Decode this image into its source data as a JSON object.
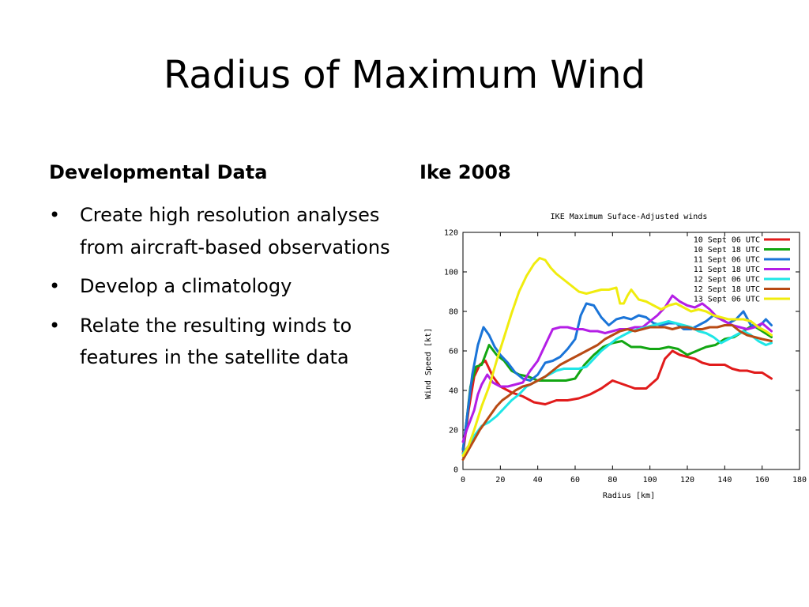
{
  "slide": {
    "title": "Radius of Maximum Wind",
    "left_heading": "Developmental Data",
    "right_heading": "Ike 2008",
    "bullets": [
      "Create high resolution analyses from aircraft-based observations",
      "Develop a climatology",
      "Relate the resulting winds to features in the satellite data"
    ]
  },
  "chart_data": {
    "type": "line",
    "title": "IKE Maximum Suface-Adjusted winds",
    "xlabel": "Radius [km]",
    "ylabel": "Wind Speed [kt]",
    "xlim": [
      0,
      180
    ],
    "ylim": [
      0,
      120
    ],
    "xticks": [
      0,
      20,
      40,
      60,
      80,
      100,
      120,
      140,
      160,
      180
    ],
    "yticks": [
      0,
      20,
      40,
      60,
      80,
      100,
      120
    ],
    "grid": false,
    "legend_position": "top-right",
    "series": [
      {
        "name": "10 Sept 06 UTC",
        "color": "#e11b1b",
        "x": [
          0,
          3,
          6,
          9,
          12,
          16,
          20,
          26,
          32,
          38,
          44,
          50,
          56,
          62,
          68,
          74,
          80,
          86,
          92,
          98,
          104,
          108,
          112,
          116,
          120,
          124,
          128,
          132,
          136,
          140,
          144,
          148,
          152,
          156,
          160,
          165
        ],
        "y": [
          8,
          30,
          47,
          53,
          55,
          47,
          42,
          39,
          37,
          34,
          33,
          35,
          35,
          36,
          38,
          41,
          45,
          43,
          41,
          41,
          46,
          56,
          60,
          58,
          57,
          56,
          54,
          53,
          53,
          53,
          51,
          50,
          50,
          49,
          49,
          46
        ]
      },
      {
        "name": "10 Sept 18 UTC",
        "color": "#12a612",
        "x": [
          0,
          2,
          4,
          7,
          10,
          14,
          18,
          22,
          26,
          30,
          35,
          40,
          45,
          50,
          55,
          60,
          65,
          70,
          75,
          80,
          85,
          90,
          95,
          100,
          105,
          110,
          115,
          120,
          125,
          130,
          135,
          140,
          145,
          150,
          155,
          160,
          165
        ],
        "y": [
          10,
          25,
          42,
          52,
          53,
          63,
          58,
          55,
          50,
          48,
          47,
          45,
          45,
          45,
          45,
          46,
          53,
          58,
          62,
          64,
          65,
          62,
          62,
          61,
          61,
          62,
          61,
          58,
          60,
          62,
          63,
          66,
          67,
          70,
          73,
          70,
          67
        ]
      },
      {
        "name": "11 Sept 06 UTC",
        "color": "#1a74d8",
        "x": [
          0,
          2,
          5,
          8,
          11,
          14,
          17,
          20,
          24,
          28,
          32,
          36,
          40,
          44,
          48,
          52,
          56,
          60,
          63,
          66,
          70,
          74,
          78,
          82,
          86,
          90,
          94,
          98,
          102,
          106,
          110,
          114,
          118,
          122,
          126,
          130,
          134,
          138,
          142,
          146,
          150,
          154,
          158,
          162,
          165
        ],
        "y": [
          10,
          25,
          48,
          63,
          72,
          68,
          62,
          58,
          54,
          49,
          46,
          45,
          48,
          54,
          55,
          57,
          61,
          66,
          78,
          84,
          83,
          77,
          73,
          76,
          77,
          76,
          78,
          77,
          74,
          73,
          74,
          74,
          71,
          71,
          73,
          75,
          78,
          76,
          74,
          76,
          80,
          73,
          72,
          76,
          73
        ]
      },
      {
        "name": "11 Sept 18 UTC",
        "color": "#b41ee6",
        "x": [
          0,
          2,
          4,
          6,
          8,
          10,
          13,
          16,
          20,
          24,
          28,
          32,
          36,
          40,
          44,
          48,
          52,
          56,
          60,
          64,
          68,
          72,
          76,
          80,
          84,
          88,
          92,
          96,
          100,
          104,
          108,
          112,
          116,
          120,
          124,
          128,
          132,
          136,
          140,
          144,
          148,
          152,
          156,
          160,
          165
        ],
        "y": [
          14,
          20,
          25,
          30,
          38,
          43,
          48,
          44,
          42,
          42,
          43,
          44,
          50,
          55,
          63,
          71,
          72,
          72,
          71,
          71,
          70,
          70,
          69,
          70,
          71,
          71,
          72,
          72,
          75,
          78,
          82,
          88,
          85,
          83,
          82,
          84,
          81,
          77,
          75,
          73,
          72,
          71,
          72,
          74,
          70
        ]
      },
      {
        "name": "12 Sept 06 UTC",
        "color": "#1fe6e6",
        "x": [
          0,
          3,
          6,
          10,
          14,
          18,
          22,
          26,
          30,
          34,
          38,
          42,
          46,
          50,
          54,
          58,
          62,
          66,
          70,
          74,
          78,
          82,
          86,
          90,
          94,
          98,
          102,
          106,
          110,
          114,
          118,
          122,
          126,
          130,
          134,
          138,
          142,
          146,
          150,
          154,
          158,
          162,
          165
        ],
        "y": [
          8,
          12,
          17,
          22,
          24,
          27,
          31,
          35,
          38,
          42,
          44,
          46,
          48,
          50,
          51,
          51,
          51,
          52,
          56,
          60,
          63,
          66,
          68,
          70,
          71,
          72,
          73,
          74,
          75,
          74,
          73,
          72,
          70,
          69,
          67,
          64,
          66,
          68,
          70,
          68,
          65,
          63,
          64
        ]
      },
      {
        "name": "12 Sept 18 UTC",
        "color": "#b84a14",
        "x": [
          0,
          3,
          6,
          9,
          12,
          15,
          18,
          21,
          24,
          28,
          32,
          36,
          40,
          44,
          48,
          52,
          56,
          60,
          64,
          68,
          72,
          76,
          80,
          84,
          88,
          92,
          96,
          100,
          104,
          108,
          112,
          116,
          120,
          124,
          128,
          132,
          136,
          140,
          144,
          148,
          152,
          156,
          160,
          165
        ],
        "y": [
          5,
          10,
          15,
          20,
          24,
          28,
          32,
          35,
          37,
          40,
          42,
          43,
          45,
          47,
          50,
          53,
          55,
          57,
          59,
          61,
          63,
          66,
          68,
          70,
          71,
          70,
          71,
          72,
          72,
          72,
          71,
          72,
          72,
          71,
          71,
          72,
          72,
          73,
          73,
          70,
          68,
          67,
          66,
          65
        ]
      },
      {
        "name": "13 Sept 06 UTC",
        "color": "#f0ec0e",
        "x": [
          0,
          3,
          6,
          10,
          14,
          18,
          22,
          26,
          30,
          34,
          38,
          41,
          44,
          47,
          50,
          54,
          58,
          62,
          66,
          70,
          74,
          78,
          82,
          84,
          86,
          88,
          90,
          94,
          98,
          102,
          106,
          110,
          114,
          118,
          122,
          126,
          130,
          134,
          138,
          142,
          146,
          150,
          154,
          158,
          162,
          165
        ],
        "y": [
          7,
          12,
          20,
          32,
          42,
          55,
          67,
          79,
          90,
          98,
          104,
          107,
          106,
          102,
          99,
          96,
          93,
          90,
          89,
          90,
          91,
          91,
          92,
          84,
          84,
          88,
          91,
          86,
          85,
          83,
          81,
          83,
          84,
          82,
          80,
          81,
          80,
          78,
          77,
          76,
          76,
          76,
          75,
          72,
          70,
          68
        ]
      }
    ]
  }
}
